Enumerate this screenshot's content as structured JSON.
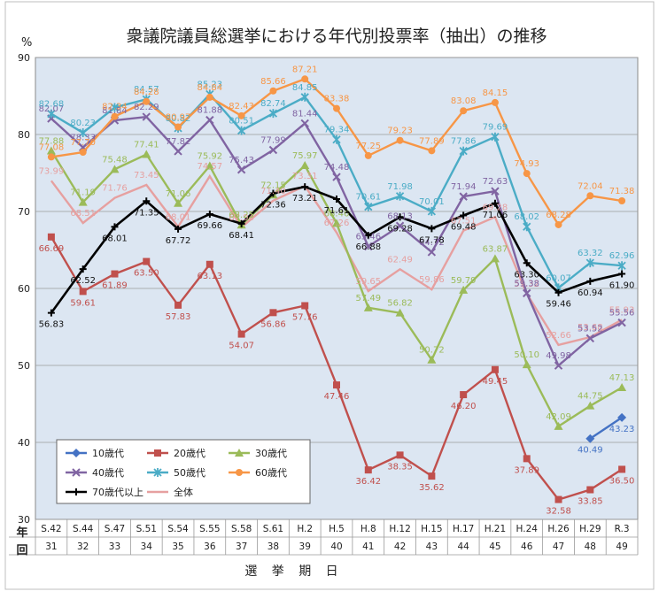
{
  "chart_data": {
    "type": "line",
    "title": "衆議院議員総選挙における年代別投票率（抽出）の推移",
    "ylabel": "%",
    "xlabel": "選 挙 期 日",
    "row_label_year": "年",
    "row_label_round": "回",
    "ylim": [
      30,
      90
    ],
    "yticks": [
      "30",
      "40",
      "50",
      "60",
      "70",
      "80",
      "90"
    ],
    "grid": true,
    "legend_position": "bottom-left",
    "categories": [
      "S.42",
      "S.44",
      "S.47",
      "S.51",
      "S.54",
      "S.55",
      "S.58",
      "S.61",
      "H.2",
      "H.5",
      "H.8",
      "H.12",
      "H.15",
      "H.17",
      "H.21",
      "H.24",
      "H.26",
      "H.29",
      "R.3"
    ],
    "rounds": [
      "31",
      "32",
      "33",
      "34",
      "35",
      "36",
      "37",
      "38",
      "39",
      "40",
      "41",
      "42",
      "43",
      "44",
      "45",
      "46",
      "47",
      "48",
      "49"
    ],
    "series": [
      {
        "name": "10歳代",
        "color": "#4472C4",
        "marker": "diamond",
        "values": [
          null,
          null,
          null,
          null,
          null,
          null,
          null,
          null,
          null,
          null,
          null,
          null,
          null,
          null,
          null,
          null,
          null,
          40.49,
          43.23
        ],
        "labels": [
          null,
          null,
          null,
          null,
          null,
          null,
          null,
          null,
          null,
          null,
          null,
          null,
          null,
          null,
          null,
          null,
          null,
          "40.49",
          "43.23"
        ]
      },
      {
        "name": "20歳代",
        "color": "#C0504D",
        "marker": "square",
        "values": [
          66.69,
          59.61,
          61.89,
          63.5,
          57.83,
          63.13,
          54.07,
          56.86,
          57.76,
          47.46,
          36.42,
          38.35,
          35.62,
          46.2,
          49.45,
          37.89,
          32.58,
          33.85,
          36.5
        ],
        "labels": [
          "66.69",
          "59.61",
          "61.89",
          "63.50",
          "57.83",
          "63.13",
          "54.07",
          "56.86",
          "57.76",
          "47.46",
          "36.42",
          "38.35",
          "35.62",
          "46.20",
          "49.45",
          "37.89",
          "32.58",
          "33.85",
          "36.50"
        ]
      },
      {
        "name": "30歳代",
        "color": "#9BBB59",
        "marker": "triangle",
        "values": [
          77.88,
          71.19,
          75.48,
          77.41,
          71.06,
          75.92,
          68.25,
          72.15,
          75.97,
          68.46,
          57.49,
          56.82,
          50.72,
          59.79,
          63.87,
          50.1,
          42.09,
          44.75,
          47.13
        ],
        "labels": [
          "77.88",
          "71.19",
          "75.48",
          "77.41",
          "71.06",
          "75.92",
          "68.25",
          "72.15",
          "75.97",
          "68.46",
          "57.49",
          "56.82",
          "50.72",
          "59.79",
          "63.87",
          "50.10",
          "42.09",
          "44.75",
          "47.13"
        ]
      },
      {
        "name": "40歳代",
        "color": "#8064A2",
        "marker": "x",
        "values": [
          82.07,
          78.33,
          81.84,
          82.29,
          77.82,
          81.88,
          75.43,
          77.99,
          81.44,
          74.48,
          65.46,
          68.13,
          64.72,
          71.94,
          72.63,
          59.38,
          49.98,
          53.52,
          55.56
        ],
        "labels": [
          "82.07",
          "78.33",
          "81.84",
          "82.29",
          "77.82",
          "81.88",
          "75.43",
          "77.99",
          "81.44",
          "74.48",
          "65.46",
          "68.13",
          "64.72",
          "71.94",
          "72.63",
          "59.38",
          "49.98",
          "53.52",
          "55.56"
        ]
      },
      {
        "name": "50歳代",
        "color": "#4BACC6",
        "marker": "star",
        "values": [
          82.68,
          80.23,
          83.5,
          84.57,
          80.82,
          85.23,
          80.51,
          82.74,
          84.85,
          79.34,
          70.61,
          71.98,
          70.01,
          77.86,
          79.69,
          68.02,
          60.07,
          63.32,
          62.96
        ],
        "labels": [
          "82.68",
          "80.23",
          "",
          "84.57",
          "80.82",
          "85.23",
          "80.51",
          "82.74",
          "84.85",
          "79.34",
          "70.61",
          "71.98",
          "70.01",
          "77.86",
          "79.69",
          "68.02",
          "60.07",
          "63.32",
          "62.96"
        ]
      },
      {
        "name": "60歳代",
        "color": "#F79646",
        "marker": "circle",
        "values": [
          77.08,
          77.7,
          82.34,
          84.28,
          80.97,
          84.84,
          82.43,
          85.66,
          87.21,
          83.38,
          77.25,
          79.23,
          77.89,
          83.08,
          84.15,
          74.93,
          68.28,
          72.04,
          71.38
        ],
        "labels": [
          "77.08",
          "77.70",
          "82.34",
          "84.28",
          "80.97",
          "84.84",
          "82.43",
          "85.66",
          "87.21",
          "83.38",
          "77.25",
          "79.23",
          "77.89",
          "83.08",
          "84.15",
          "74.93",
          "68.28",
          "72.04",
          "71.38"
        ]
      },
      {
        "name": "70歳代以上",
        "color": "#000000",
        "marker": "plus",
        "values": [
          56.83,
          62.52,
          68.01,
          71.35,
          67.72,
          69.66,
          68.41,
          72.36,
          73.21,
          71.61,
          66.88,
          69.28,
          67.78,
          69.48,
          71.06,
          63.3,
          59.46,
          60.94,
          61.9
        ],
        "labels": [
          "56.83",
          "62.52",
          "68.01",
          "71.35",
          "67.72",
          "69.66",
          "68.41",
          "72.36",
          "73.21",
          "71.61",
          "66.88",
          "69.28",
          "67.78",
          "69.48",
          "71.06",
          "63.30",
          "59.46",
          "60.94",
          "61.90"
        ]
      },
      {
        "name": "全体",
        "color": "#E6A0A0",
        "marker": "none",
        "values": [
          73.99,
          68.51,
          71.76,
          73.45,
          68.01,
          74.57,
          67.94,
          71.4,
          73.31,
          67.26,
          59.65,
          62.49,
          59.86,
          67.51,
          69.28,
          59.32,
          52.66,
          53.68,
          55.93
        ],
        "labels": [
          "73.99",
          "68.51",
          "71.76",
          "73.45",
          "68.01",
          "74.57",
          "67.94",
          "71.40",
          "73.31",
          "67.26",
          "59.65",
          "62.49",
          "59.86",
          "67.51",
          "69.28",
          "59.32",
          "52.66",
          "53.68",
          "55.93"
        ]
      }
    ]
  }
}
